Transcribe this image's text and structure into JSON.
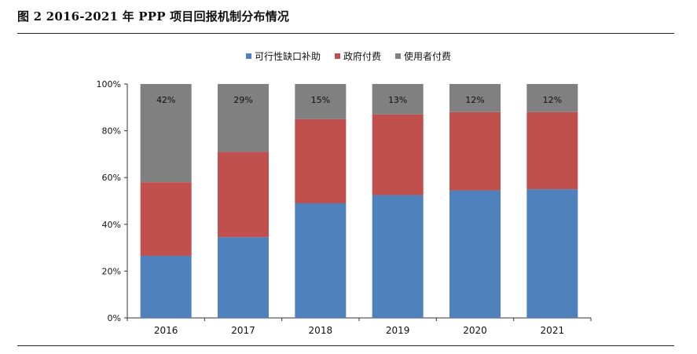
{
  "figure": {
    "title": "图 2   2016-2021 年 PPP 项目回报机制分布情况"
  },
  "chart_data": {
    "type": "bar",
    "stacked": true,
    "categories": [
      "2016",
      "2017",
      "2018",
      "2019",
      "2020",
      "2021"
    ],
    "series": [
      {
        "name": "可行性缺口补助",
        "color": "#4F81BD",
        "values": [
          26.5,
          34.5,
          49.0,
          52.5,
          54.5,
          55.0
        ]
      },
      {
        "name": "政府付费",
        "color": "#C0504D",
        "values": [
          31.5,
          36.5,
          36.0,
          34.5,
          33.5,
          33.0
        ]
      },
      {
        "name": "使用者付费",
        "color": "#808080",
        "values": [
          42.0,
          29.0,
          15.0,
          13.0,
          12.0,
          12.0
        ]
      }
    ],
    "data_labels": {
      "series_index": 2,
      "labels": [
        "42%",
        "29%",
        "15%",
        "13%",
        "12%",
        "12%"
      ]
    },
    "ylim": [
      0,
      100
    ],
    "yticks": [
      0,
      20,
      40,
      60,
      80,
      100
    ],
    "ytick_labels": [
      "0%",
      "20%",
      "40%",
      "60%",
      "80%",
      "100%"
    ],
    "grid": false,
    "legend_position": "top"
  }
}
